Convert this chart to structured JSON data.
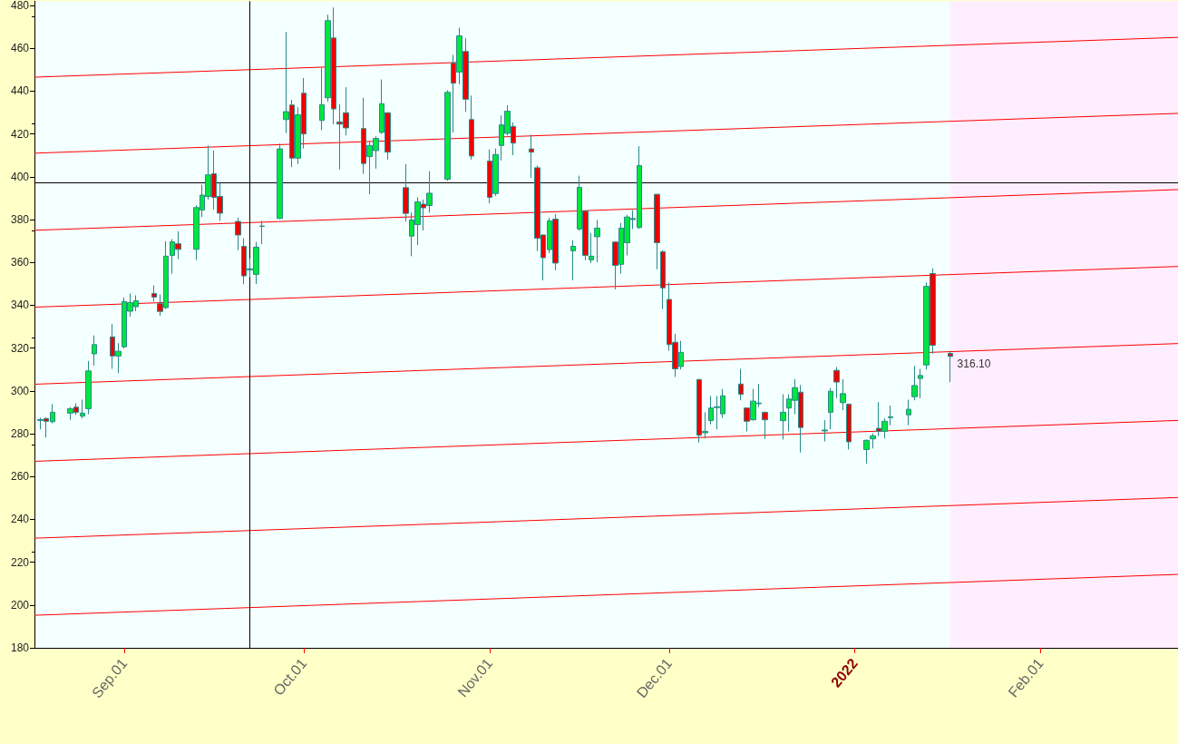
{
  "chart_data": {
    "type": "candlestick",
    "x": [
      "2021-08-18",
      "2021-08-19",
      "2021-08-20",
      "2021-08-23",
      "2021-08-24",
      "2021-08-25",
      "2021-08-26",
      "2021-08-27",
      "2021-08-30",
      "2021-08-31",
      "2021-09-01",
      "2021-09-02",
      "2021-09-03",
      "2021-09-06",
      "2021-09-07",
      "2021-09-08",
      "2021-09-09",
      "2021-09-10",
      "2021-09-13",
      "2021-09-14",
      "2021-09-15",
      "2021-09-16",
      "2021-09-17",
      "2021-09-20",
      "2021-09-21",
      "2021-09-22",
      "2021-09-23",
      "2021-09-24",
      "2021-09-27",
      "2021-09-28",
      "2021-09-29",
      "2021-09-30",
      "2021-10-01",
      "2021-10-04",
      "2021-10-05",
      "2021-10-06",
      "2021-10-07",
      "2021-10-08",
      "2021-10-11",
      "2021-10-12",
      "2021-10-13",
      "2021-10-14",
      "2021-10-15",
      "2021-10-18",
      "2021-10-19",
      "2021-10-20",
      "2021-10-21",
      "2021-10-22",
      "2021-10-25",
      "2021-10-26",
      "2021-10-27",
      "2021-10-28",
      "2021-10-29",
      "2021-11-01",
      "2021-11-02",
      "2021-11-03",
      "2021-11-04",
      "2021-11-05",
      "2021-11-08",
      "2021-11-09",
      "2021-11-10",
      "2021-11-11",
      "2021-11-12",
      "2021-11-15",
      "2021-11-16",
      "2021-11-17",
      "2021-11-18",
      "2021-11-19",
      "2021-11-22",
      "2021-11-23",
      "2021-11-24",
      "2021-11-25",
      "2021-11-26",
      "2021-11-29",
      "2021-11-30",
      "2021-12-01",
      "2021-12-02",
      "2021-12-03",
      "2021-12-06",
      "2021-12-07",
      "2021-12-08",
      "2021-12-09",
      "2021-12-10",
      "2021-12-13",
      "2021-12-14",
      "2021-12-15",
      "2021-12-16",
      "2021-12-17",
      "2021-12-20",
      "2021-12-21",
      "2021-12-22",
      "2021-12-23",
      "2021-12-27",
      "2021-12-28",
      "2021-12-29",
      "2021-12-30",
      "2021-12-31",
      "2022-01-03",
      "2022-01-04",
      "2022-01-05",
      "2022-01-06",
      "2022-01-07",
      "2022-01-10",
      "2022-01-11",
      "2022-01-12",
      "2022-01-13",
      "2022-01-14",
      "2022-01-17"
    ],
    "ohlc": [
      [
        286.2,
        287.5,
        282.0,
        286.6
      ],
      [
        287.1,
        287.5,
        278.2,
        285.8
      ],
      [
        285.6,
        293.8,
        284.9,
        290.0
      ],
      [
        289.6,
        292.4,
        286.5,
        291.7
      ],
      [
        292.4,
        294.2,
        288.8,
        290.0
      ],
      [
        288.2,
        295.9,
        287.2,
        289.6
      ],
      [
        291.7,
        314.0,
        289.1,
        309.3
      ],
      [
        317.3,
        325.9,
        311.8,
        321.6
      ],
      [
        325.2,
        331.2,
        310.3,
        316.3
      ],
      [
        316.3,
        322.3,
        308.3,
        318.5
      ],
      [
        320.6,
        343.6,
        319.9,
        341.7
      ],
      [
        337.2,
        345.5,
        334.7,
        341.3
      ],
      [
        339.3,
        344.6,
        337.2,
        342.1
      ],
      [
        345.5,
        349.2,
        341.7,
        343.8
      ],
      [
        340.7,
        345.0,
        335.1,
        337.1
      ],
      [
        338.9,
        369.9,
        338.2,
        362.9
      ],
      [
        363.3,
        370.9,
        354.7,
        369.6
      ],
      [
        368.7,
        374.5,
        361.5,
        366.1
      ],
      [
        366.1,
        386.7,
        361.1,
        385.6
      ],
      [
        384.5,
        396.3,
        381.2,
        391.4
      ],
      [
        390.8,
        414.6,
        389.3,
        400.9
      ],
      [
        401.4,
        412.2,
        384.7,
        390.4
      ],
      [
        390.8,
        397.1,
        379.4,
        383.0
      ],
      [
        379.1,
        380.8,
        365.7,
        372.8
      ],
      [
        367.5,
        371.3,
        349.8,
        353.7
      ],
      [
        356.5,
        361.9,
        353.0,
        357.0
      ],
      [
        354.4,
        369.6,
        349.9,
        367.1
      ],
      [
        376.8,
        379.4,
        368.5,
        377.0
      ],
      [
        380.5,
        415.5,
        380.2,
        413.0
      ],
      [
        426.7,
        467.6,
        420.4,
        430.4
      ],
      [
        433.5,
        435.9,
        404.5,
        408.7
      ],
      [
        408.7,
        432.4,
        405.9,
        428.9
      ],
      [
        439.0,
        446.1,
        413.2,
        420.0
      ],
      [
        426.3,
        451.0,
        421.7,
        433.7
      ],
      [
        436.9,
        475.7,
        435.1,
        472.9
      ],
      [
        464.8,
        479.0,
        424.5,
        431.7
      ],
      [
        425.6,
        433.8,
        403.4,
        424.6
      ],
      [
        429.9,
        441.8,
        419.3,
        422.8
      ],
      [
        422.5,
        436.9,
        401.4,
        406.2
      ],
      [
        409.4,
        416.5,
        391.8,
        414.6
      ],
      [
        412.2,
        418.9,
        403.8,
        417.9
      ],
      [
        420.7,
        445.4,
        420.0,
        434.1
      ],
      [
        429.9,
        430.1,
        408.0,
        411.5
      ],
      [
        394.9,
        405.9,
        379.1,
        382.9
      ],
      [
        372.3,
        383.3,
        362.9,
        379.8
      ],
      [
        377.7,
        390.4,
        368.1,
        388.3
      ],
      [
        387.2,
        389.3,
        374.9,
        385.5
      ],
      [
        386.6,
        402.6,
        383.3,
        392.3
      ],
      [
        398.8,
        440.4,
        398.1,
        439.4
      ],
      [
        453.1,
        456.9,
        420.7,
        443.7
      ],
      [
        448.9,
        469.6,
        443.2,
        465.8
      ],
      [
        458.5,
        464.8,
        430.3,
        436.2
      ],
      [
        426.7,
        437.9,
        408.0,
        409.7
      ],
      [
        407.3,
        412.7,
        387.6,
        390.4
      ],
      [
        392.2,
        413.2,
        391.1,
        410.4
      ],
      [
        414.6,
        428.7,
        407.6,
        424.2
      ],
      [
        420.3,
        433.4,
        419.3,
        430.6
      ],
      [
        423.5,
        425.4,
        410.1,
        415.7
      ],
      [
        413.0,
        419.6,
        399.5,
        411.5
      ],
      [
        404.2,
        405.2,
        365.3,
        371.3
      ],
      [
        372.8,
        373.0,
        351.6,
        362.2
      ],
      [
        366.0,
        380.8,
        364.3,
        379.4
      ],
      [
        380.2,
        382.6,
        356.3,
        359.7
      ],
      [
        365.4,
        370.4,
        351.6,
        367.5
      ],
      [
        375.6,
        400.5,
        374.9,
        395.0
      ],
      [
        384.0,
        384.3,
        361.0,
        363.3
      ],
      [
        361.2,
        373.7,
        359.7,
        362.9
      ],
      [
        372.0,
        379.8,
        360.1,
        376.0
      ],
      [
        369.5,
        369.8,
        347.4,
        358.6
      ],
      [
        359.1,
        378.4,
        354.8,
        376.0
      ],
      [
        369.2,
        382.2,
        363.3,
        381.2
      ],
      [
        380.0,
        384.4,
        375.6,
        380.5
      ],
      [
        376.3,
        414.3,
        375.6,
        405.2
      ],
      [
        391.8,
        392.0,
        356.8,
        369.2
      ],
      [
        365.0,
        365.7,
        338.2,
        348.1
      ],
      [
        342.7,
        350.6,
        318.7,
        321.6
      ],
      [
        322.7,
        326.7,
        306.5,
        310.3
      ],
      [
        311.4,
        323.4,
        310.0,
        318.0
      ],
      [
        305.3,
        305.5,
        275.9,
        279.3
      ],
      [
        280.4,
        290.0,
        277.8,
        281.1
      ],
      [
        286.1,
        297.6,
        284.4,
        292.0
      ],
      [
        292.2,
        297.6,
        282.1,
        292.6
      ],
      [
        289.3,
        300.9,
        287.4,
        297.7
      ],
      [
        303.2,
        310.3,
        295.6,
        298.4
      ],
      [
        292.0,
        292.3,
        281.1,
        285.8
      ],
      [
        286.5,
        300.9,
        286.1,
        295.2
      ],
      [
        294.0,
        303.2,
        292.4,
        294.3
      ],
      [
        290.0,
        290.3,
        277.6,
        286.5
      ],
      [
        286.1,
        298.4,
        277.3,
        290.0
      ],
      [
        292.0,
        298.4,
        281.1,
        296.2
      ],
      [
        295.6,
        305.5,
        289.1,
        301.5
      ],
      [
        299.4,
        302.7,
        271.2,
        282.9
      ],
      [
        281.3,
        286.3,
        276.4,
        281.7
      ],
      [
        290.0,
        301.3,
        282.1,
        299.8
      ],
      [
        309.6,
        311.1,
        296.6,
        304.1
      ],
      [
        294.5,
        305.5,
        291.0,
        298.7
      ],
      [
        293.8,
        294.0,
        272.6,
        276.2
      ],
      [
        272.6,
        277.3,
        266.0,
        276.9
      ],
      [
        277.6,
        280.1,
        273.1,
        279.0
      ],
      [
        282.5,
        294.8,
        279.0,
        281.1
      ],
      [
        281.1,
        287.2,
        277.8,
        285.8
      ],
      [
        287.5,
        293.1,
        283.9,
        287.9
      ],
      [
        288.8,
        295.9,
        283.9,
        291.4
      ],
      [
        297.3,
        311.7,
        295.6,
        302.5
      ],
      [
        305.8,
        310.3,
        296.6,
        307.2
      ],
      [
        312.1,
        350.6,
        310.0,
        348.8
      ],
      [
        354.8,
        357.2,
        317.4,
        321.3
      ],
      [
        317.5,
        318.7,
        304.1,
        316.1
      ]
    ],
    "series": [
      {
        "type": "line",
        "color": "#ff0000",
        "x": [
          "2021-08-17",
          "2022-02-24"
        ],
        "values": [
          446.5,
          465.1
        ]
      },
      {
        "type": "line",
        "color": "#ff0000",
        "x": [
          "2021-08-17",
          "2022-02-24"
        ],
        "values": [
          411.0,
          429.6
        ]
      },
      {
        "type": "line",
        "color": "#ff0000",
        "x": [
          "2021-08-17",
          "2022-02-24"
        ],
        "values": [
          375.0,
          394.0
        ]
      },
      {
        "type": "line",
        "color": "#ff0000",
        "x": [
          "2021-08-17",
          "2022-02-24"
        ],
        "values": [
          339.1,
          358.1
        ]
      },
      {
        "type": "line",
        "color": "#ff0000",
        "x": [
          "2021-08-17",
          "2022-02-24"
        ],
        "values": [
          303.1,
          322.1
        ]
      },
      {
        "type": "line",
        "color": "#ff0000",
        "x": [
          "2021-08-17",
          "2022-02-24"
        ],
        "values": [
          267.1,
          286.2
        ]
      },
      {
        "type": "line",
        "color": "#ff0000",
        "x": [
          "2021-08-17",
          "2022-02-24"
        ],
        "values": [
          231.2,
          250.2
        ]
      },
      {
        "type": "line",
        "color": "#ff0000",
        "x": [
          "2021-08-17",
          "2022-02-24"
        ],
        "values": [
          195.2,
          214.3
        ]
      }
    ],
    "xlim": [
      "2021-08-17",
      "2022-02-24"
    ],
    "xticks": [
      {
        "value": "2021-09-01",
        "label": "Sep.01"
      },
      {
        "value": "2021-10-01",
        "label": "Oct.01"
      },
      {
        "value": "2021-11-01",
        "label": "Nov.01"
      },
      {
        "value": "2021-12-01",
        "label": "Dec.01"
      },
      {
        "value": "2022-01-01",
        "label": "2022"
      },
      {
        "value": "2022-02-01",
        "label": "Feb.01"
      }
    ],
    "ylim": [
      180,
      482
    ],
    "yticks": [
      180,
      200,
      220,
      240,
      260,
      280,
      300,
      320,
      340,
      360,
      380,
      400,
      420,
      440,
      460,
      480
    ],
    "ref_lines": [
      {
        "axis": "y",
        "value": 397.4,
        "color": "#000000"
      },
      {
        "axis": "x",
        "value": "2021-09-22",
        "color": "#000000"
      }
    ],
    "bands": [
      {
        "axis": "x",
        "from": "2022-01-17",
        "to": "2022-02-24",
        "color": "#ffeeff"
      }
    ],
    "annotations": [
      {
        "text": "316.10",
        "x": "2022-01-17",
        "y": 316.1
      }
    ]
  }
}
